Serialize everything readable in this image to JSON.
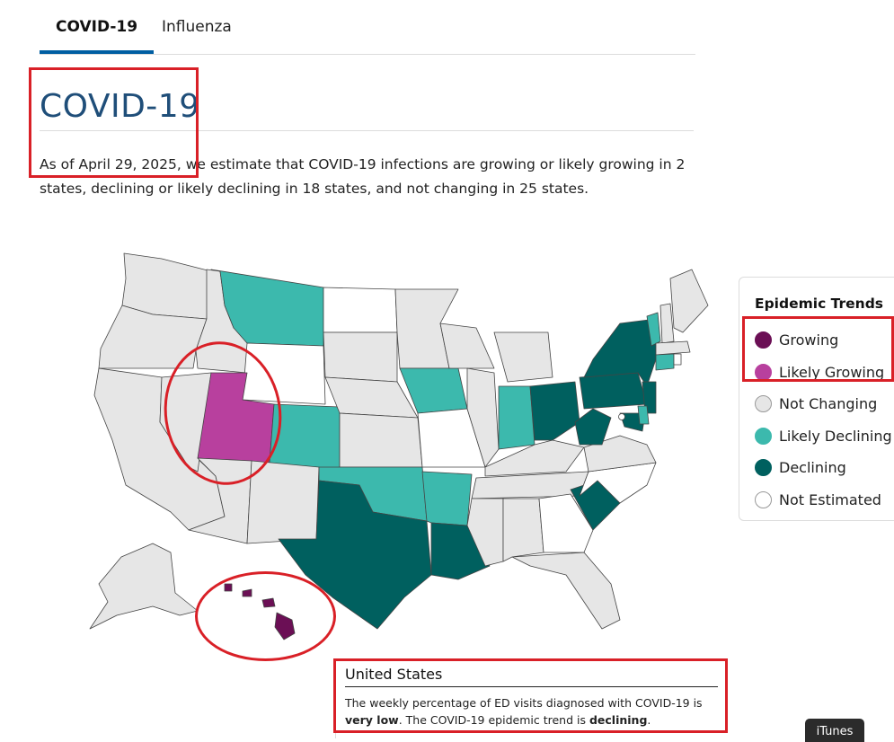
{
  "tabs": [
    {
      "label": "COVID-19",
      "active": true
    },
    {
      "label": "Influenza",
      "active": false
    }
  ],
  "page_title": "COVID-19",
  "summary": {
    "prefix": "As of April 29, 2025, we estimate that COVID-19 infections are growing or likely growing in 2 states, declining or likely declining in 18 states, and not changing in 25 states."
  },
  "legend": {
    "title": "Epidemic Trends",
    "items": [
      {
        "label": "Growing",
        "color": "#6b0f55"
      },
      {
        "label": "Likely Growing",
        "color": "#b8409e"
      },
      {
        "label": "Not Changing",
        "color": "#e6e6e6"
      },
      {
        "label": "Likely Declining",
        "color": "#3cb9ad"
      },
      {
        "label": "Declining",
        "color": "#00605f"
      },
      {
        "label": "Not Estimated",
        "color": "#ffffff"
      }
    ]
  },
  "state_trends": {
    "Growing": [
      "Hawaii"
    ],
    "Likely Growing": [
      "Utah"
    ],
    "Likely Declining": [
      "Montana",
      "Colorado",
      "Iowa",
      "Indiana",
      "Oklahoma",
      "Arkansas",
      "Vermont",
      "Connecticut",
      "Delaware"
    ],
    "Declining": [
      "Texas",
      "Louisiana",
      "Ohio",
      "West Virginia",
      "Pennsylvania",
      "New York",
      "New Jersey",
      "Maryland",
      "South Carolina"
    ],
    "Not Estimated": [
      "Wyoming",
      "North Dakota",
      "Missouri",
      "North Carolina",
      "Georgia",
      "Rhode Island"
    ]
  },
  "us_summary": {
    "heading": "United States",
    "text_1": "The weekly percentage of ED visits diagnosed with COVID-19 is ",
    "bold_1": "very low",
    "text_2": ". The COVID-19 epidemic trend is ",
    "bold_2": "declining",
    "text_3": "."
  },
  "overlay": {
    "itunes_label": "iTunes"
  }
}
